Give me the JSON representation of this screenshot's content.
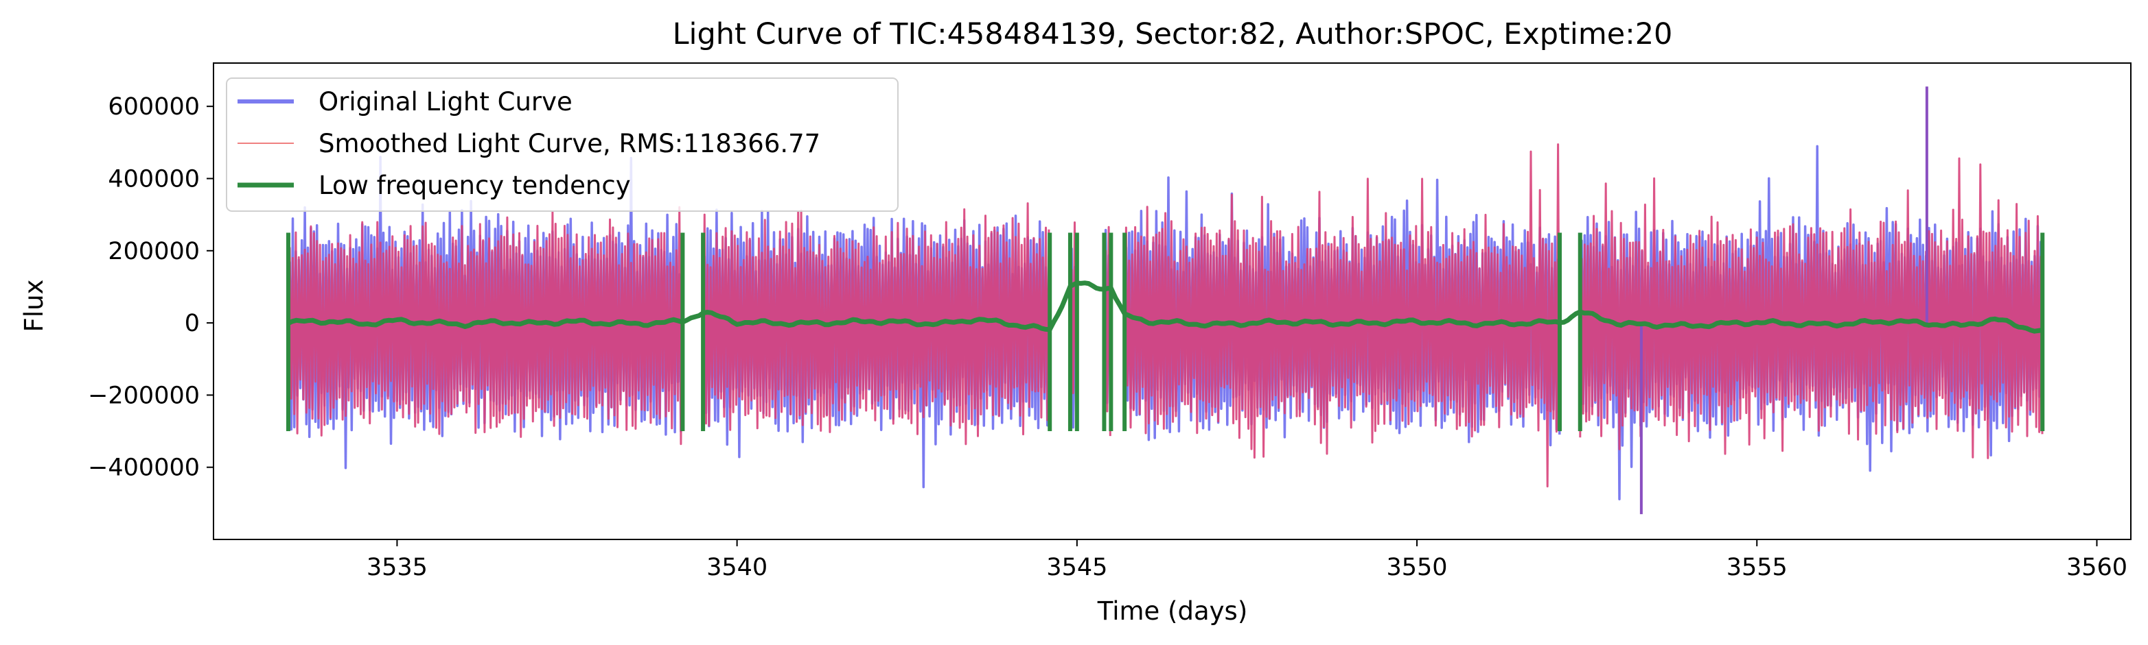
{
  "chart_data": {
    "type": "line",
    "title": "Light Curve of TIC:458484139, Sector:82, Author:SPOC, Exptime:20",
    "xlabel": "Time (days)",
    "ylabel": "Flux",
    "xlim": [
      3532.3,
      3560.5
    ],
    "ylim": [
      -600000,
      720000
    ],
    "x_ticks": [
      3535,
      3540,
      3545,
      3550,
      3555,
      3560
    ],
    "y_ticks": [
      -400000,
      -200000,
      0,
      200000,
      400000,
      600000
    ],
    "x_tick_labels": [
      "3535",
      "3540",
      "3545",
      "3550",
      "3555",
      "3560"
    ],
    "y_tick_labels": [
      "−400000",
      "−200000",
      "0",
      "200000",
      "400000",
      "600000"
    ],
    "grid": false,
    "legend_position": "top-left",
    "segments": [
      [
        3533.4,
        3539.2
      ],
      [
        3539.5,
        3544.6
      ],
      [
        3544.9,
        3545.0
      ],
      [
        3545.4,
        3545.5
      ],
      [
        3545.7,
        3552.1
      ],
      [
        3552.4,
        3559.2
      ]
    ],
    "noise_envelope": {
      "typical_upper": 250000,
      "typical_lower": -280000,
      "notable_peak": 655000,
      "notable_peak_x": 3557.5,
      "notable_trough": -530000,
      "notable_trough_x": 3553.3
    },
    "series": [
      {
        "name": "Original Light Curve",
        "color": "#7b7bf0",
        "style": "thick line"
      },
      {
        "name": "Smoothed Light Curve, RMS:118366.77",
        "color": "#f08080",
        "style": "thin line"
      },
      {
        "name": "Low frequency tendency",
        "color": "#2e8b40",
        "style": "thick line"
      }
    ],
    "trend": {
      "x": [
        3533.4,
        3534.0,
        3534.5,
        3535.0,
        3535.5,
        3536.0,
        3536.5,
        3537.0,
        3537.5,
        3538.0,
        3538.5,
        3539.0,
        3539.2,
        3539.5,
        3540.0,
        3541.0,
        3542.0,
        3543.0,
        3543.5,
        3544.0,
        3544.6,
        3544.9,
        3545.0,
        3545.4,
        3545.5,
        3545.7,
        3546.0,
        3547.0,
        3548.0,
        3549.0,
        3550.0,
        3551.0,
        3552.1,
        3552.4,
        3553.0,
        3554.0,
        3555.0,
        3556.0,
        3557.0,
        3558.0,
        3558.5,
        3559.2
      ],
      "y": [
        2000,
        5000,
        -3000,
        6000,
        0,
        -4000,
        3000,
        -2000,
        4000,
        0,
        -3000,
        2000,
        5000,
        30000,
        2000,
        -2000,
        5000,
        -3000,
        10000,
        -2000,
        -20000,
        100000,
        110000,
        95000,
        100000,
        20000,
        5000,
        -5000,
        3000,
        -2000,
        4000,
        -3000,
        2000,
        30000,
        -3000,
        -8000,
        2000,
        -5000,
        5000,
        -8000,
        10000,
        -25000
      ]
    }
  }
}
